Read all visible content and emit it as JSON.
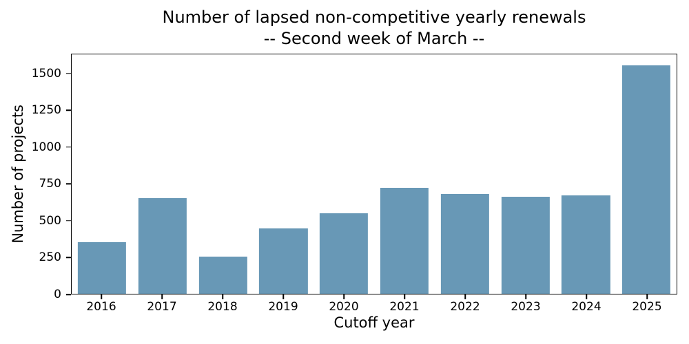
{
  "chart_data": {
    "type": "bar",
    "title": "Number of lapsed non-competitive yearly renewals",
    "subtitle": "-- Second week of March --",
    "categories": [
      "2016",
      "2017",
      "2018",
      "2019",
      "2020",
      "2021",
      "2022",
      "2023",
      "2024",
      "2025"
    ],
    "values": [
      350,
      650,
      255,
      445,
      550,
      725,
      680,
      660,
      670,
      1560
    ],
    "xlabel": "Cutoff year",
    "ylabel": "Number of projects",
    "ylim": [
      0,
      1633
    ],
    "yticks": [
      0,
      250,
      500,
      750,
      1000,
      1250,
      1500
    ],
    "bar_color": "#6898b6",
    "axis_color": "#000000",
    "text_color": "#000000",
    "background_color": "#ffffff",
    "grid": false,
    "legend_position": "none",
    "bar_width_fraction": 0.8
  }
}
